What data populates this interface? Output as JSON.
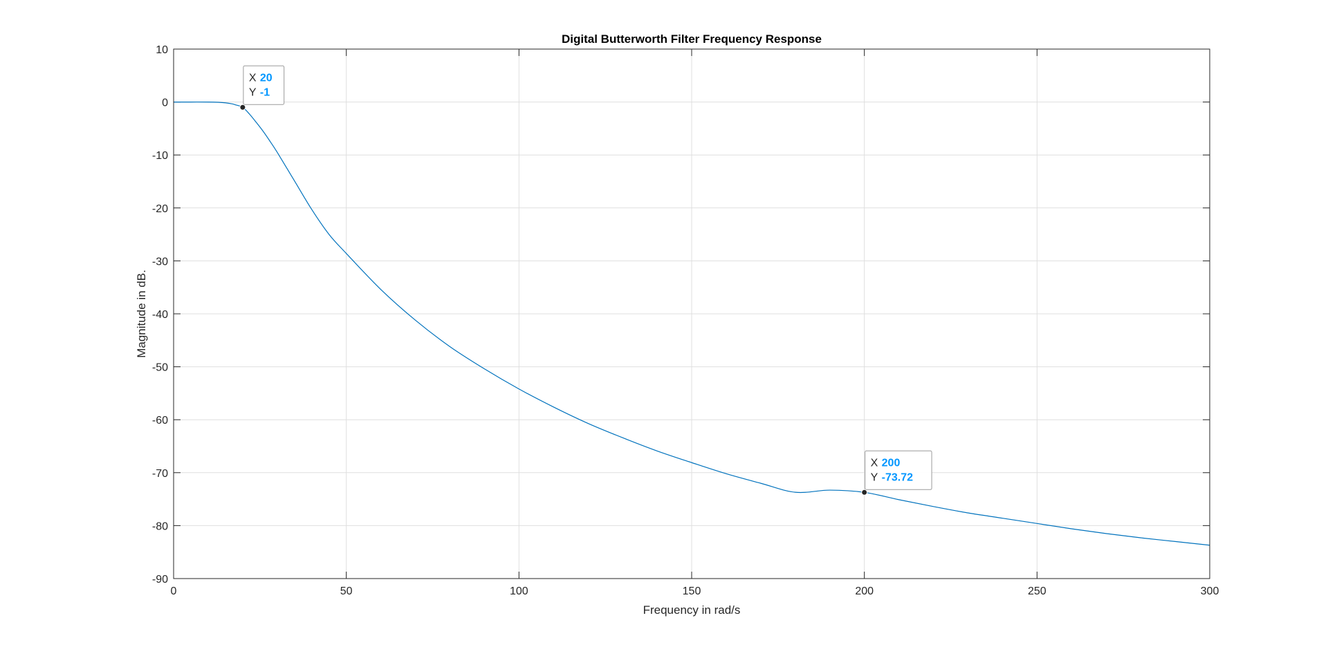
{
  "chart_data": {
    "type": "line",
    "title": "Digital Butterworth Filter Frequency Response",
    "xlabel": "Frequency in rad/s",
    "ylabel": "Magnitude in dB.",
    "xlim": [
      0,
      300
    ],
    "ylim": [
      -90,
      10
    ],
    "xticks": [
      0,
      50,
      100,
      150,
      200,
      250,
      300
    ],
    "yticks": [
      10,
      0,
      -10,
      -20,
      -30,
      -40,
      -50,
      -60,
      -70,
      -80,
      -90
    ],
    "grid": true,
    "series": [
      {
        "color": "#0072bd",
        "x": [
          0,
          5,
          10,
          13,
          15,
          17,
          18,
          20,
          22,
          24,
          26,
          28,
          30,
          35,
          40,
          45,
          50,
          60,
          70,
          80,
          90,
          100,
          110,
          120,
          130,
          140,
          150,
          160,
          170,
          180,
          190,
          200,
          210,
          220,
          230,
          240,
          250,
          260,
          270,
          280,
          290,
          300
        ],
        "y": [
          0,
          0,
          0,
          -0.05,
          -0.15,
          -0.35,
          -0.55,
          -1,
          -2.3,
          -3.9,
          -5.6,
          -7.5,
          -9.5,
          -14.9,
          -20.3,
          -25.0,
          -28.6,
          -35.4,
          -41.2,
          -46.2,
          -50.4,
          -54.2,
          -57.6,
          -60.7,
          -63.4,
          -65.9,
          -68.1,
          -70.2,
          -72.0,
          -73.7,
          -73.3,
          -73.72,
          -75.1,
          -76.4,
          -77.6,
          -78.6,
          -79.6,
          -80.6,
          -81.5,
          -82.3,
          -83.0,
          -83.7
        ]
      }
    ],
    "datatips": [
      {
        "x_label": "X",
        "y_label": "Y",
        "x_value": "20",
        "y_value": "-1",
        "x": 20,
        "y": -1
      },
      {
        "x_label": "X",
        "y_label": "Y",
        "x_value": "200",
        "y_value": "-73.72",
        "x": 200,
        "y": -73.72
      }
    ],
    "datatip_value_color": "#0096ff"
  }
}
